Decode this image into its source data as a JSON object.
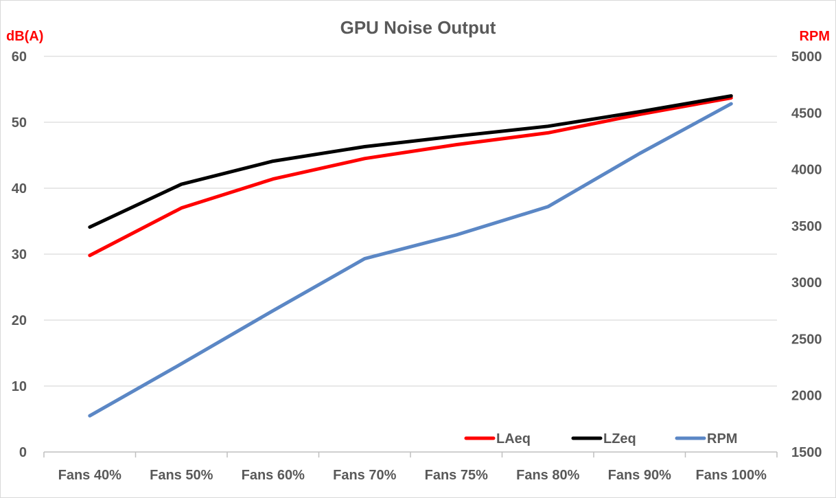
{
  "chart_data": {
    "type": "line",
    "title": "GPU Noise Output",
    "y_left_label": "dB(A)",
    "y_right_label": "RPM",
    "axis_label_color": "#ff0000",
    "categories": [
      "Fans 40%",
      "Fans 50%",
      "Fans 60%",
      "Fans 70%",
      "Fans 75%",
      "Fans 80%",
      "Fans 90%",
      "Fans 100%"
    ],
    "y_left": {
      "min": 0,
      "max": 60,
      "step": 10
    },
    "y_right": {
      "min": 1500,
      "max": 5000,
      "step": 500
    },
    "grid": true,
    "legend_position": "bottom-right",
    "series": [
      {
        "name": "LAeq",
        "axis": "left",
        "color": "#ff0000",
        "values": [
          29.8,
          37.0,
          41.4,
          44.5,
          46.6,
          48.4,
          51.2,
          53.7
        ]
      },
      {
        "name": "LZeq",
        "axis": "left",
        "color": "#000000",
        "values": [
          34.1,
          40.6,
          44.1,
          46.3,
          47.9,
          49.4,
          51.6,
          54.0
        ]
      },
      {
        "name": "RPM",
        "axis": "right",
        "color": "#5b87c5",
        "values": [
          1820,
          2280,
          2750,
          3210,
          3420,
          3670,
          4140,
          4580
        ]
      }
    ]
  }
}
